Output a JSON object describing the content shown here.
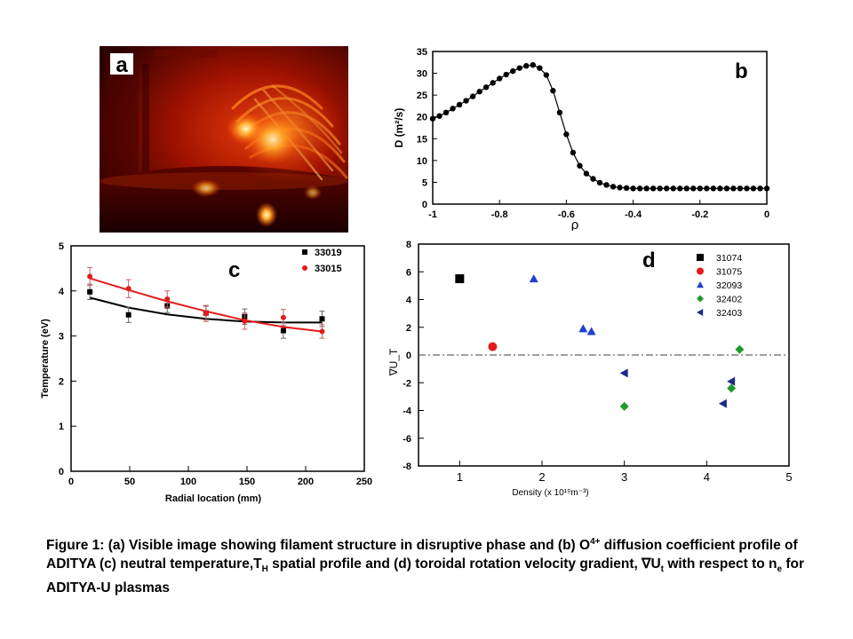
{
  "panel_a": {
    "label": "a",
    "colors": {
      "dark": "#2a0000",
      "mid": "#c41a00",
      "glow": "#ffb030",
      "hot": "#fff6c8"
    }
  },
  "chart_data": [
    {
      "id": "b",
      "type": "line",
      "panel_label": "b",
      "xlabel": "ρ",
      "ylabel": "D (m²/s)",
      "xlim": [
        -1,
        0
      ],
      "ylim": [
        0,
        35
      ],
      "xticks": [
        "-1",
        "-0.8",
        "-0.6",
        "-0.4",
        "-0.2",
        "0"
      ],
      "yticks": [
        "0",
        "5",
        "10",
        "15",
        "20",
        "25",
        "30",
        "35"
      ],
      "series": [
        {
          "x": [
            -1.0,
            -0.98,
            -0.96,
            -0.94,
            -0.92,
            -0.9,
            -0.88,
            -0.86,
            -0.84,
            -0.82,
            -0.8,
            -0.78,
            -0.76,
            -0.74,
            -0.72,
            -0.7,
            -0.68,
            -0.66,
            -0.64,
            -0.62,
            -0.6,
            -0.58,
            -0.56,
            -0.54,
            -0.52,
            -0.5,
            -0.48,
            -0.46,
            -0.44,
            -0.42,
            -0.4,
            -0.38,
            -0.36,
            -0.34,
            -0.32,
            -0.3,
            -0.28,
            -0.26,
            -0.24,
            -0.22,
            -0.2,
            -0.18,
            -0.16,
            -0.14,
            -0.12,
            -0.1,
            -0.08,
            -0.06,
            -0.04,
            -0.02,
            0
          ],
          "y": [
            19.6,
            20.2,
            21.0,
            21.9,
            22.8,
            23.7,
            24.7,
            25.8,
            26.8,
            27.8,
            28.8,
            29.7,
            30.5,
            31.2,
            31.7,
            31.9,
            31.2,
            29.6,
            26.0,
            21.0,
            16.0,
            11.8,
            8.8,
            7.0,
            5.8,
            4.9,
            4.4,
            4.0,
            3.8,
            3.7,
            3.6,
            3.6,
            3.6,
            3.6,
            3.6,
            3.6,
            3.6,
            3.6,
            3.6,
            3.6,
            3.6,
            3.6,
            3.6,
            3.6,
            3.6,
            3.6,
            3.6,
            3.6,
            3.6,
            3.6,
            3.6
          ]
        }
      ]
    },
    {
      "id": "c",
      "type": "scatter",
      "panel_label": "c",
      "xlabel": "Radial location (mm)",
      "ylabel": "Temperature (eV)",
      "xlim": [
        0,
        250
      ],
      "ylim": [
        0,
        5
      ],
      "xticks": [
        "0",
        "50",
        "100",
        "150",
        "200",
        "250"
      ],
      "yticks": [
        "0",
        "1",
        "2",
        "3",
        "4",
        "5"
      ],
      "series": [
        {
          "name": "33019",
          "color": "#000000",
          "marker": "square",
          "x": [
            16,
            49,
            82,
            115,
            148,
            181,
            214
          ],
          "y": [
            3.98,
            3.47,
            3.67,
            3.51,
            3.43,
            3.12,
            3.38
          ],
          "err": [
            0.17,
            0.17,
            0.15,
            0.15,
            0.17,
            0.17,
            0.17
          ],
          "fit": [
            3.85,
            3.63,
            3.48,
            3.38,
            3.32,
            3.3,
            3.3
          ]
        },
        {
          "name": "33015",
          "color": "#e31b1b",
          "marker": "circle",
          "x": [
            16,
            49,
            82,
            115,
            148,
            181,
            214
          ],
          "y": [
            4.32,
            4.05,
            3.82,
            3.5,
            3.33,
            3.41,
            3.1
          ],
          "err": [
            0.2,
            0.2,
            0.18,
            0.18,
            0.18,
            0.18,
            0.15
          ],
          "fit": [
            4.28,
            4.02,
            3.77,
            3.55,
            3.35,
            3.2,
            3.1
          ]
        }
      ]
    },
    {
      "id": "d",
      "type": "scatter",
      "panel_label": "d",
      "xlabel": "Density (x 10¹⁹m⁻³)",
      "ylabel": "∇U_T",
      "xlim": [
        0.5,
        5
      ],
      "ylim": [
        -8,
        8
      ],
      "xticks": [
        "1",
        "2",
        "3",
        "4",
        "5"
      ],
      "yticks": [
        "8",
        "6",
        "4",
        "2",
        "0",
        "-2",
        "-4",
        "-6",
        "-8"
      ],
      "reference_line_y": 0,
      "series": [
        {
          "name": "31074",
          "color": "#000000",
          "marker": "square",
          "x": [
            1.0
          ],
          "y": [
            5.5
          ]
        },
        {
          "name": "31075",
          "color": "#e31b1b",
          "marker": "circle",
          "x": [
            1.4
          ],
          "y": [
            0.6
          ]
        },
        {
          "name": "32093",
          "color": "#1f3fd0",
          "marker": "triangle-up",
          "x": [
            1.9,
            2.5,
            2.6
          ],
          "y": [
            5.5,
            1.9,
            1.7
          ]
        },
        {
          "name": "32402",
          "color": "#1f9a2a",
          "marker": "diamond",
          "x": [
            3.0,
            4.3,
            4.4
          ],
          "y": [
            -3.7,
            -2.4,
            0.4
          ]
        },
        {
          "name": "32403",
          "color": "#1c2a8c",
          "marker": "triangle-left",
          "x": [
            3.0,
            4.2,
            4.3
          ],
          "y": [
            -1.3,
            -3.5,
            -1.9
          ]
        }
      ]
    }
  ],
  "caption": {
    "t1": "Figure 1: (a) Visible image showing filament structure in disruptive phase and (b) O",
    "sup1": "4+",
    "t2": " diffusion coefficient profile of ADITYA (c) neutral temperature,T",
    "sub1": "H",
    "t3": " spatial profile and (d) toroidal rotation velocity gradient, ∇U",
    "sub2": "t",
    "t4": " with respect to n",
    "sub3": "e",
    "t5": " for ADITYA-U plasmas"
  }
}
